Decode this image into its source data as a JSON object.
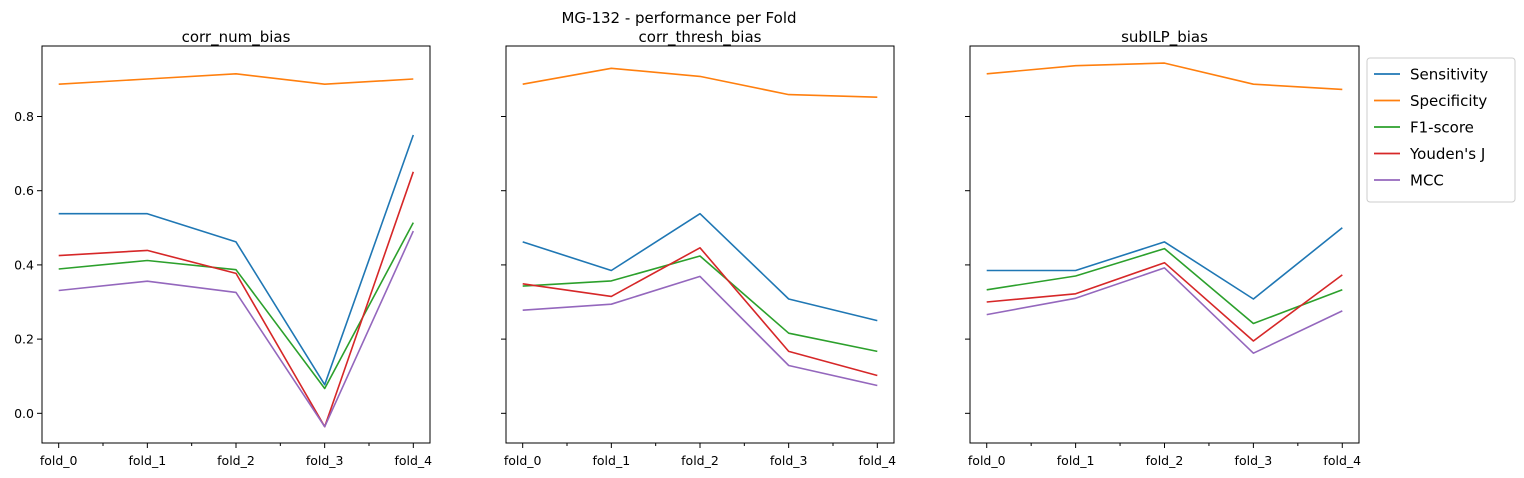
{
  "figure": {
    "suptitle": "MG-132 - performance per Fold"
  },
  "chart_data": [
    {
      "type": "line",
      "title": "corr_num_bias",
      "xlabel": "",
      "ylabel": "",
      "categories": [
        "fold_0",
        "fold_1",
        "fold_2",
        "fold_3",
        "fold_4"
      ],
      "ylim": [
        -0.08,
        0.99
      ],
      "yticks": [
        "0.0",
        "0.2",
        "0.4",
        "0.6",
        "0.8"
      ],
      "grid": false,
      "series": [
        {
          "name": "Sensitivity",
          "color": "#1f77b4",
          "values": [
            0.538,
            0.538,
            0.462,
            0.077,
            0.75
          ]
        },
        {
          "name": "Specificity",
          "color": "#ff7f0e",
          "values": [
            0.887,
            0.901,
            0.915,
            0.887,
            0.901
          ]
        },
        {
          "name": "F1-score",
          "color": "#2ca02c",
          "values": [
            0.389,
            0.412,
            0.387,
            0.067,
            0.514
          ]
        },
        {
          "name": "Youden's J",
          "color": "#d62728",
          "values": [
            0.425,
            0.439,
            0.377,
            -0.036,
            0.651
          ]
        },
        {
          "name": "MCC",
          "color": "#9467bd",
          "values": [
            0.331,
            0.356,
            0.326,
            -0.036,
            0.491
          ]
        }
      ]
    },
    {
      "type": "line",
      "title": "corr_thresh_bias",
      "xlabel": "",
      "ylabel": "",
      "categories": [
        "fold_0",
        "fold_1",
        "fold_2",
        "fold_3",
        "fold_4"
      ],
      "ylim": [
        -0.08,
        0.99
      ],
      "grid": false,
      "series": [
        {
          "name": "Sensitivity",
          "color": "#1f77b4",
          "values": [
            0.462,
            0.385,
            0.538,
            0.308,
            0.25
          ]
        },
        {
          "name": "Specificity",
          "color": "#ff7f0e",
          "values": [
            0.887,
            0.93,
            0.908,
            0.859,
            0.852
          ]
        },
        {
          "name": "F1-score",
          "color": "#2ca02c",
          "values": [
            0.343,
            0.357,
            0.424,
            0.216,
            0.167
          ]
        },
        {
          "name": "Youden's J",
          "color": "#d62728",
          "values": [
            0.349,
            0.315,
            0.446,
            0.167,
            0.102
          ]
        },
        {
          "name": "MCC",
          "color": "#9467bd",
          "values": [
            0.278,
            0.294,
            0.369,
            0.129,
            0.075
          ]
        }
      ]
    },
    {
      "type": "line",
      "title": "subILP_bias",
      "xlabel": "",
      "ylabel": "",
      "categories": [
        "fold_0",
        "fold_1",
        "fold_2",
        "fold_3",
        "fold_4"
      ],
      "ylim": [
        -0.08,
        0.99
      ],
      "grid": false,
      "legend": "outside-upper-right",
      "series": [
        {
          "name": "Sensitivity",
          "color": "#1f77b4",
          "values": [
            0.385,
            0.385,
            0.462,
            0.308,
            0.5
          ]
        },
        {
          "name": "Specificity",
          "color": "#ff7f0e",
          "values": [
            0.915,
            0.937,
            0.944,
            0.887,
            0.873
          ]
        },
        {
          "name": "F1-score",
          "color": "#2ca02c",
          "values": [
            0.333,
            0.37,
            0.444,
            0.242,
            0.333
          ]
        },
        {
          "name": "Youden's J",
          "color": "#d62728",
          "values": [
            0.3,
            0.322,
            0.406,
            0.195,
            0.373
          ]
        },
        {
          "name": "MCC",
          "color": "#9467bd",
          "values": [
            0.266,
            0.31,
            0.392,
            0.162,
            0.276
          ]
        }
      ]
    }
  ]
}
